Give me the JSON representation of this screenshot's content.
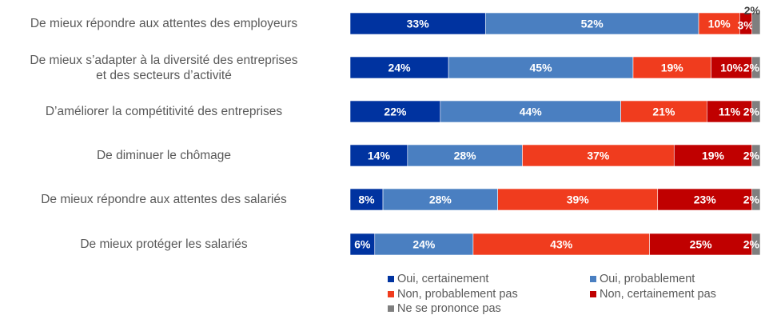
{
  "chart_data": {
    "type": "bar",
    "orientation": "horizontal",
    "stacked": true,
    "normalized": true,
    "categories": [
      [
        "De mieux répondre aux attentes des employeurs"
      ],
      [
        "De mieux s’adapter à la diversité des entreprises",
        "et des secteurs d’activité"
      ],
      [
        "D’améliorer la compétitivité des entreprises"
      ],
      [
        "De diminuer le chômage"
      ],
      [
        "De mieux répondre aux attentes des salariés"
      ],
      [
        "De mieux protéger les salariés"
      ]
    ],
    "series": [
      {
        "name": "Oui, certainement",
        "color": "#0033a0",
        "values": [
          33,
          24,
          22,
          14,
          8,
          6
        ],
        "labels": [
          "33%",
          "24%",
          "22%",
          "14%",
          "8%",
          "6%"
        ]
      },
      {
        "name": "Oui, probablement",
        "color": "#4a7fc1",
        "values": [
          52,
          45,
          44,
          28,
          28,
          24
        ],
        "labels": [
          "52%",
          "45%",
          "44%",
          "28%",
          "28%",
          "24%"
        ]
      },
      {
        "name": "Non, probablement pas",
        "color": "#f03c1e",
        "values": [
          10,
          19,
          21,
          37,
          39,
          43
        ],
        "labels": [
          "10%",
          "19%",
          "21%",
          "37%",
          "39%",
          "43%"
        ]
      },
      {
        "name": "Non, certainement pas",
        "color": "#c00000",
        "values": [
          3,
          10,
          11,
          19,
          23,
          25
        ],
        "labels": [
          "3%",
          "10%",
          "11%",
          "19%",
          "23%",
          "25%"
        ]
      },
      {
        "name": "Ne se prononce pas",
        "color": "#7f7f7f",
        "values": [
          2,
          2,
          2,
          2,
          2,
          2
        ],
        "labels": [
          "2%",
          "2%",
          "2%",
          "2%",
          "2%",
          "2%"
        ]
      }
    ],
    "xlim": [
      0,
      100
    ],
    "legend_position": "bottom-right",
    "grid": false
  }
}
